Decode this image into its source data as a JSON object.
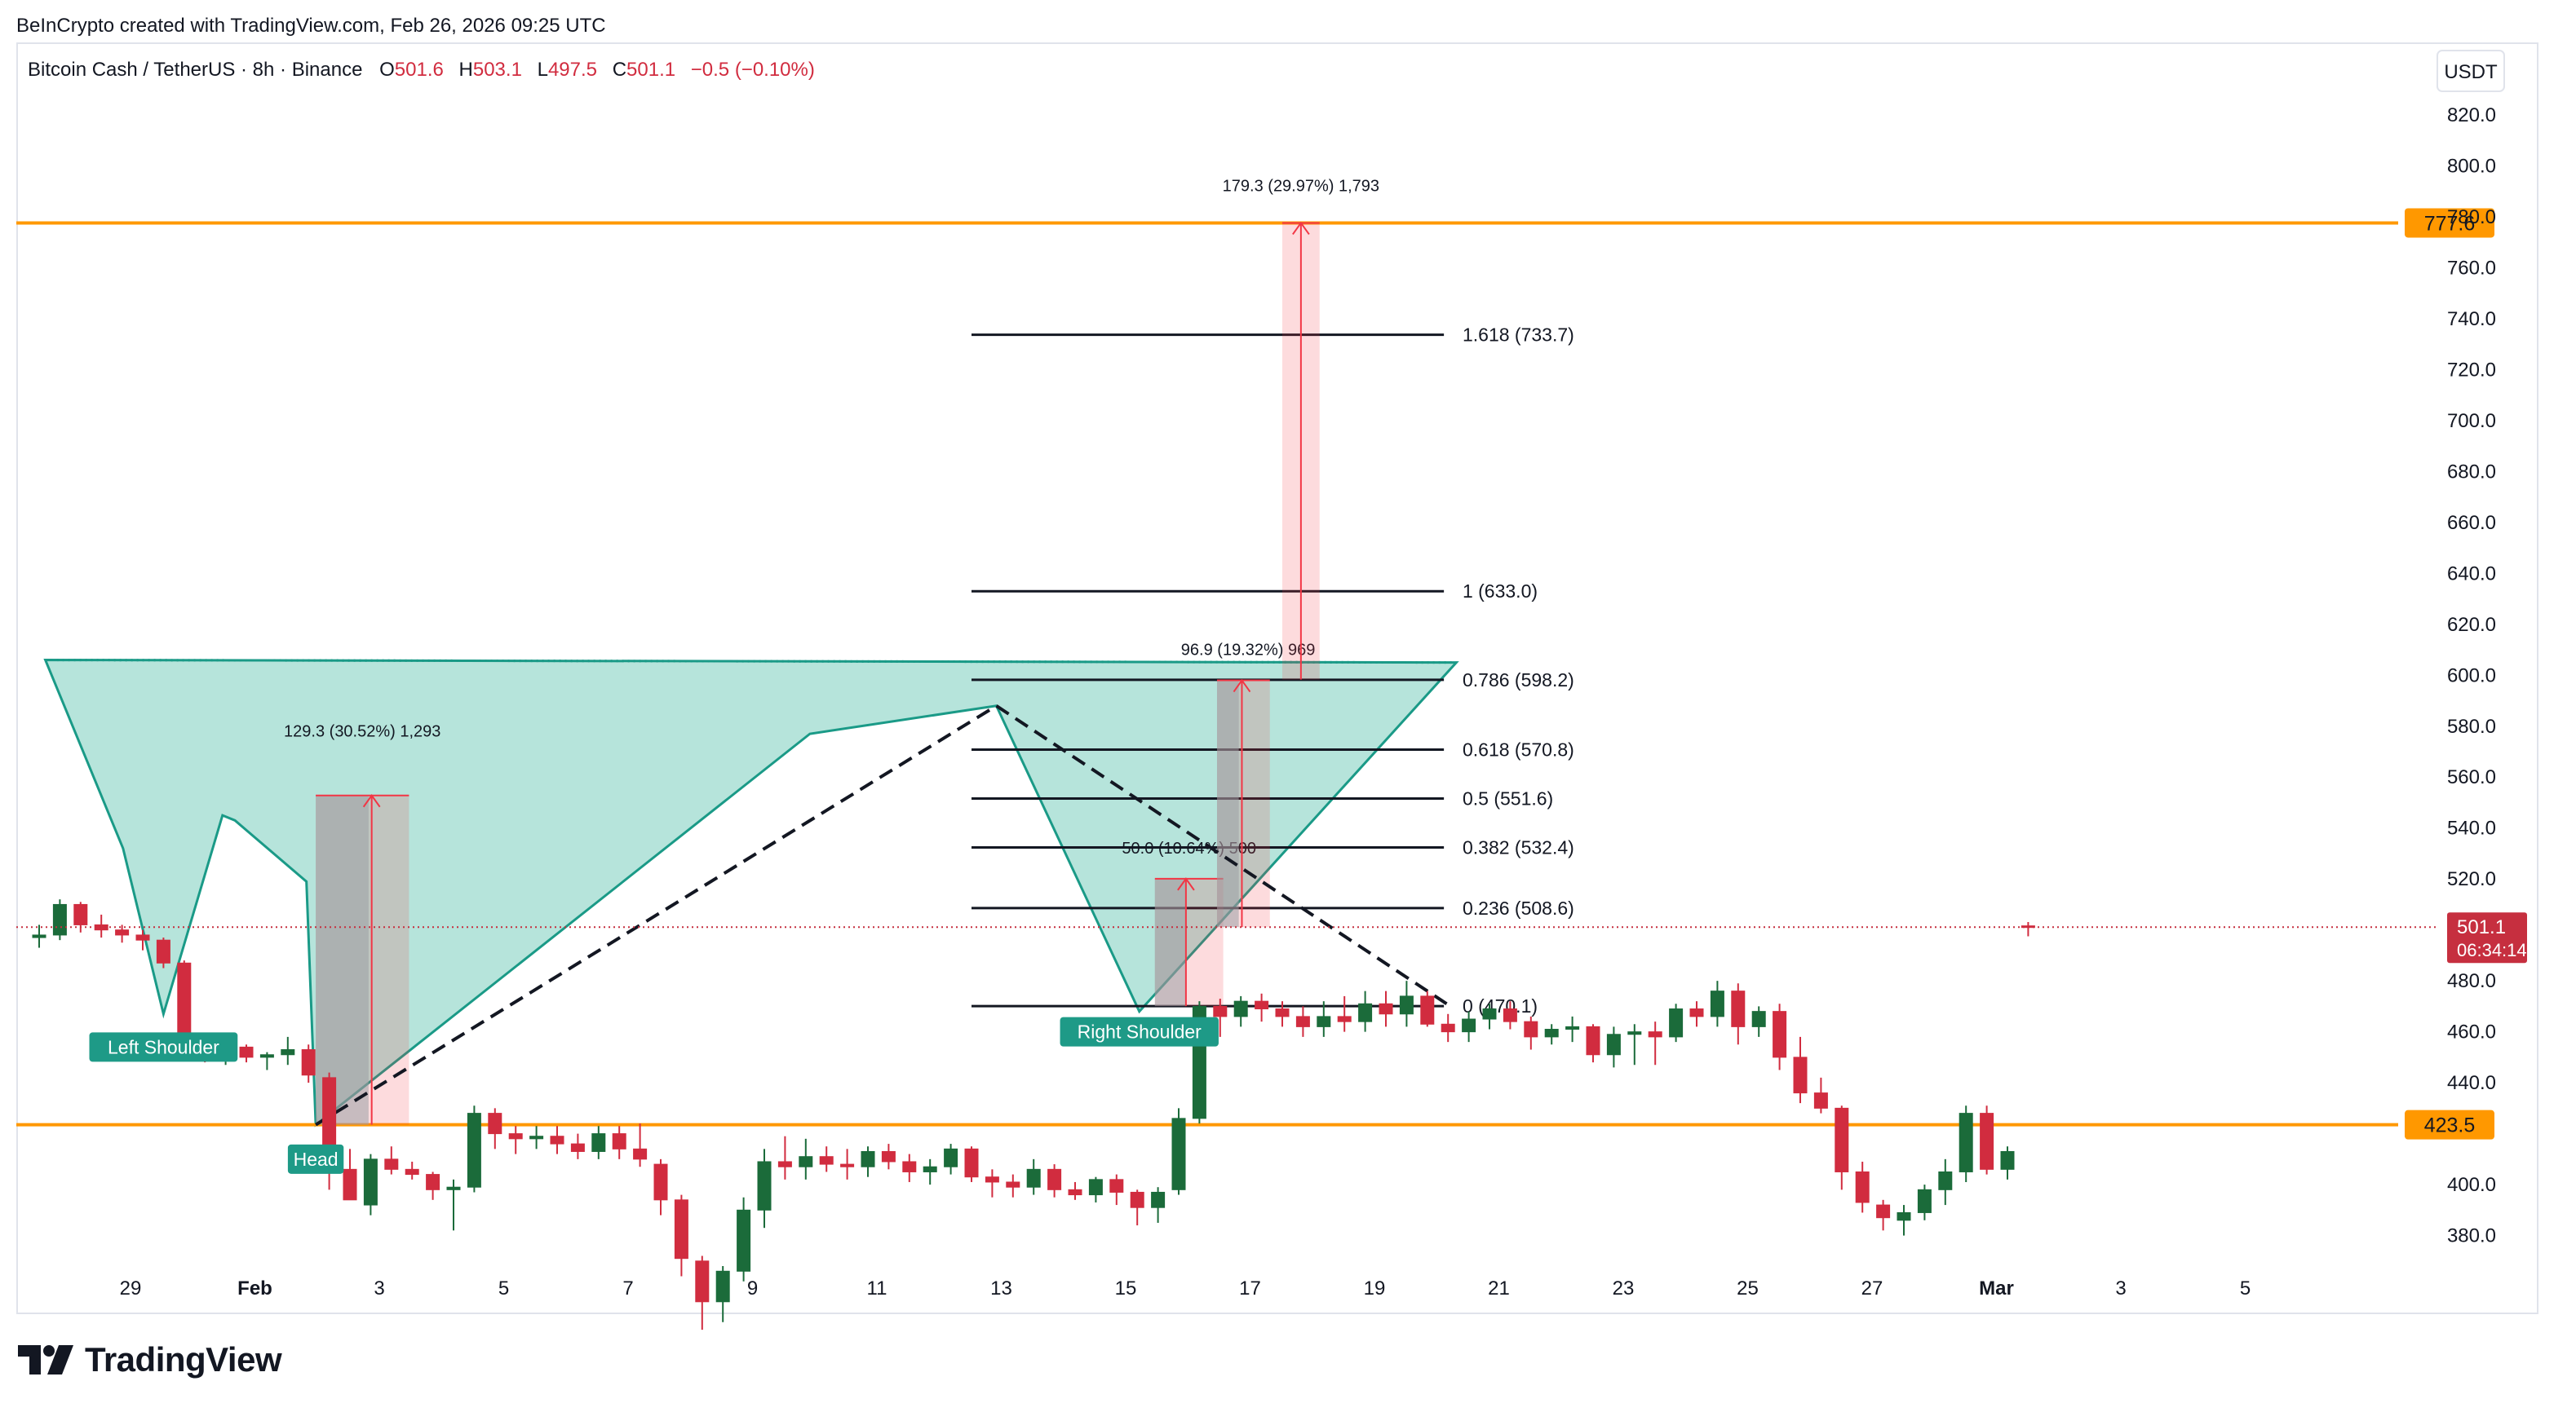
{
  "credit": "BeInCrypto created with TradingView.com, Feb 26, 2026 09:25 UTC",
  "brand": "TradingView",
  "header": {
    "symbol": "Bitcoin Cash / TetherUS · 8h · Binance",
    "o_label": "O",
    "o_value": "501.6",
    "h_label": "H",
    "h_value": "503.1",
    "l_label": "L",
    "l_value": "497.5",
    "c_label": "C",
    "c_value": "501.1",
    "change": "−0.5 (−0.10%)",
    "currency": "USDT"
  },
  "colors": {
    "up": "#1b6b3a",
    "down": "#d12c3f",
    "pattern_fill": "#b2e3d9",
    "pattern_line": "#1a9a87",
    "level": "#ff9800",
    "measure": "#f23645",
    "label_bg": "#1e9a87",
    "price_tag": "#c62f3f"
  },
  "chart_data": {
    "type": "candlestick",
    "y_axis": {
      "min": 365,
      "max": 830,
      "ticks": [
        820,
        800,
        780,
        760,
        740,
        720,
        700,
        680,
        660,
        640,
        620,
        600,
        580,
        560,
        540,
        520,
        500,
        480,
        460,
        440,
        420,
        400,
        380
      ]
    },
    "x_axis": {
      "tick_labels": [
        "29",
        "Feb",
        "3",
        "5",
        "7",
        "9",
        "11",
        "13",
        "15",
        "17",
        "19",
        "21",
        "23",
        "25",
        "27",
        "Mar",
        "3",
        "5"
      ]
    },
    "candles": [
      [
        497,
        502,
        493,
        498
      ],
      [
        498,
        512,
        496,
        510
      ],
      [
        510,
        511,
        499,
        502
      ],
      [
        502,
        506,
        497,
        500
      ],
      [
        500,
        502,
        495,
        498
      ],
      [
        498,
        500,
        492,
        496
      ],
      [
        496,
        497,
        485,
        487
      ],
      [
        487,
        488,
        450,
        456
      ],
      [
        456,
        458,
        448,
        452
      ],
      [
        452,
        456,
        447,
        454
      ],
      [
        454,
        455,
        448,
        450
      ],
      [
        450,
        452,
        445,
        451
      ],
      [
        451,
        458,
        447,
        453
      ],
      [
        453,
        455,
        440,
        443
      ],
      [
        442,
        444,
        398,
        406
      ],
      [
        406,
        414,
        398,
        394
      ],
      [
        392,
        412,
        388,
        410
      ],
      [
        410,
        415,
        404,
        406
      ],
      [
        406,
        409,
        402,
        404
      ],
      [
        404,
        405,
        394,
        398
      ],
      [
        398,
        402,
        382,
        399
      ],
      [
        399,
        431,
        397,
        428
      ],
      [
        428,
        430,
        414,
        420
      ],
      [
        420,
        423,
        412,
        418
      ],
      [
        418,
        423,
        414,
        419
      ],
      [
        419,
        423,
        412,
        416
      ],
      [
        416,
        420,
        410,
        413
      ],
      [
        413,
        423,
        410,
        420
      ],
      [
        420,
        423,
        410,
        414
      ],
      [
        414,
        424,
        407,
        410
      ],
      [
        408,
        410,
        388,
        394
      ],
      [
        394,
        396,
        364,
        371
      ],
      [
        370,
        372,
        343,
        354
      ],
      [
        354,
        368,
        346,
        366
      ],
      [
        366,
        395,
        362,
        390
      ],
      [
        390,
        414,
        383,
        409
      ],
      [
        409,
        419,
        402,
        407
      ],
      [
        407,
        418,
        402,
        411
      ],
      [
        411,
        415,
        405,
        408
      ],
      [
        408,
        414,
        402,
        407
      ],
      [
        407,
        415,
        403,
        413
      ],
      [
        413,
        416,
        406,
        409
      ],
      [
        409,
        412,
        401,
        405
      ],
      [
        405,
        410,
        400,
        407
      ],
      [
        407,
        416,
        404,
        414
      ],
      [
        414,
        415,
        401,
        403
      ],
      [
        403,
        406,
        395,
        401
      ],
      [
        401,
        404,
        395,
        399
      ],
      [
        399,
        410,
        396,
        406
      ],
      [
        406,
        408,
        395,
        398
      ],
      [
        398,
        401,
        394,
        396
      ],
      [
        396,
        403,
        393,
        402
      ],
      [
        402,
        404,
        392,
        397
      ],
      [
        397,
        398,
        384,
        391
      ],
      [
        391,
        399,
        385,
        397
      ],
      [
        398,
        430,
        396,
        426
      ],
      [
        426,
        472,
        424,
        470
      ],
      [
        470,
        473,
        458,
        466
      ],
      [
        466,
        474,
        462,
        472
      ],
      [
        472,
        475,
        464,
        469
      ],
      [
        469,
        472,
        462,
        466
      ],
      [
        466,
        470,
        458,
        462
      ],
      [
        462,
        472,
        458,
        466
      ],
      [
        466,
        474,
        460,
        464
      ],
      [
        464,
        476,
        460,
        471
      ],
      [
        471,
        476,
        462,
        467
      ],
      [
        467,
        480,
        462,
        474
      ],
      [
        474,
        476,
        462,
        463
      ],
      [
        463,
        467,
        456,
        460
      ],
      [
        460,
        468,
        456,
        465
      ],
      [
        465,
        471,
        461,
        469
      ],
      [
        469,
        472,
        461,
        464
      ],
      [
        464,
        466,
        453,
        458
      ],
      [
        458,
        463,
        455,
        461
      ],
      [
        461,
        466,
        456,
        462
      ],
      [
        462,
        463,
        448,
        451
      ],
      [
        451,
        462,
        446,
        459
      ],
      [
        459,
        463,
        447,
        460
      ],
      [
        460,
        464,
        447,
        458
      ],
      [
        458,
        471,
        456,
        469
      ],
      [
        469,
        472,
        462,
        466
      ],
      [
        466,
        480,
        462,
        476
      ],
      [
        476,
        479,
        455,
        462
      ],
      [
        462,
        470,
        458,
        468
      ],
      [
        468,
        471,
        445,
        450
      ],
      [
        450,
        458,
        432,
        436
      ],
      [
        436,
        442,
        428,
        430
      ],
      [
        430,
        431,
        398,
        405
      ],
      [
        405,
        409,
        389,
        393
      ],
      [
        392,
        394,
        382,
        387
      ],
      [
        386,
        392,
        380,
        389
      ],
      [
        389,
        400,
        386,
        398
      ],
      [
        398,
        410,
        392,
        405
      ],
      [
        405,
        431,
        401,
        428
      ],
      [
        428,
        431,
        404,
        406
      ],
      [
        406,
        415,
        402,
        413
      ],
      [
        501.6,
        503.1,
        497.5,
        501.1
      ]
    ],
    "fib_levels": [
      {
        "label": "0 (470.1)",
        "value": 470.1
      },
      {
        "label": "0.236 (508.6)",
        "value": 508.6
      },
      {
        "label": "0.382 (532.4)",
        "value": 532.4
      },
      {
        "label": "0.5 (551.6)",
        "value": 551.6
      },
      {
        "label": "0.618 (570.8)",
        "value": 570.8
      },
      {
        "label": "0.786 (598.2)",
        "value": 598.2
      },
      {
        "label": "1 (633.0)",
        "value": 633.0
      },
      {
        "label": "1.618 (733.7)",
        "value": 733.7
      }
    ],
    "horizontal_levels": [
      {
        "label": "777.6",
        "value": 777.6
      },
      {
        "label": "423.5",
        "value": 423.5
      }
    ],
    "neckline": {
      "from": {
        "day": -3.7,
        "price": 603
      },
      "to": {
        "day": 31.7,
        "price": 607
      }
    },
    "shoulder_labels": [
      "Left Shoulder",
      "Head",
      "Right Shoulder"
    ],
    "measurements": [
      {
        "label": "129.3 (30.52%) 1,293",
        "from_price": 423.5,
        "to_price": 552.8
      },
      {
        "label": "50.0 (10.64%) 500",
        "from_price": 470.1,
        "to_price": 520.1
      },
      {
        "label": "96.9 (19.32%) 969",
        "from_price": 501.1,
        "to_price": 598.0
      },
      {
        "label": "179.3 (29.97%) 1,793",
        "from_price": 598.3,
        "to_price": 777.6
      }
    ],
    "current_price": {
      "value": "501.1",
      "countdown": "06:34:14"
    }
  }
}
